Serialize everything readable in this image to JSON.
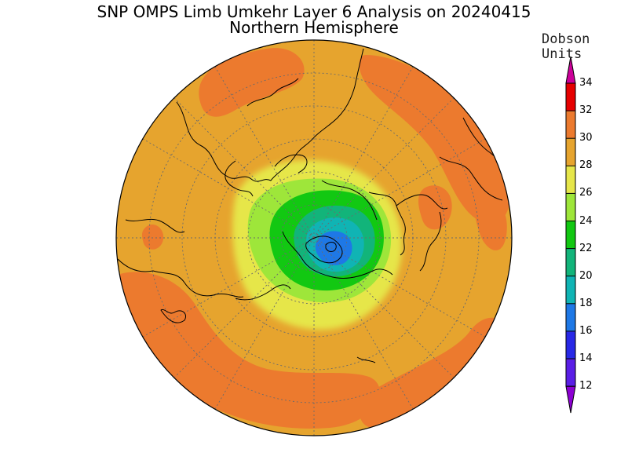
{
  "title": "SNP OMPS Limb Umkehr Layer 6 Analysis on 20240415",
  "subtitle": "Northern Hemisphere",
  "colorbar": {
    "units_line1": "Dobson",
    "units_line2": "Units",
    "ticks": [
      "34",
      "32",
      "30",
      "28",
      "26",
      "24",
      "22",
      "20",
      "18",
      "16",
      "14",
      "12"
    ],
    "colors": [
      "#cc0099",
      "#e60000",
      "#ec7a2e",
      "#e6a42e",
      "#e6e64a",
      "#9ee63a",
      "#12c812",
      "#12b47a",
      "#10b4b4",
      "#1e78e6",
      "#2828e6",
      "#5a1ee6",
      "#8c00d2"
    ]
  },
  "map": {
    "projection": "north polar stereographic",
    "background_color": "#e6a42e"
  }
}
